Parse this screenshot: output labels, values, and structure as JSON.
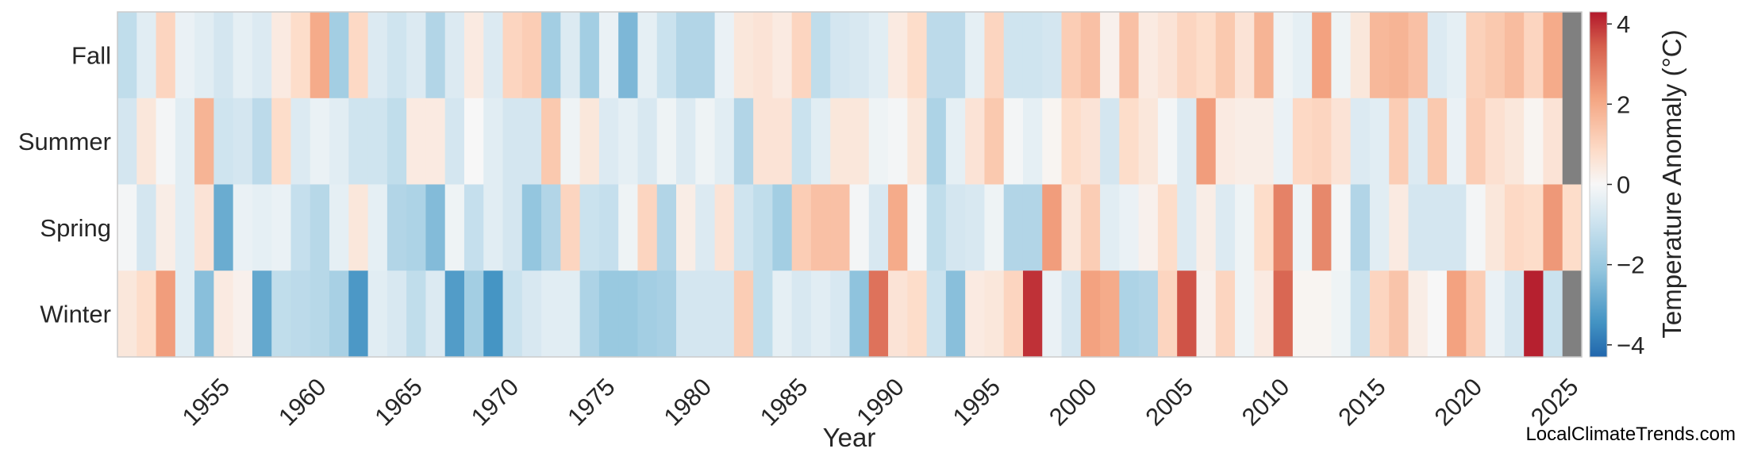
{
  "chart_data": {
    "type": "heatmap",
    "title": "",
    "xlabel": "Year",
    "ylabel": "",
    "colorbar_label": "Temperature Anomaly (°C)",
    "colormap": "RdBu_r",
    "vmin": -4.3,
    "vmax": 4.3,
    "missing_color": "#808080",
    "seasons": [
      "Fall",
      "Summer",
      "Spring",
      "Winter"
    ],
    "year_start": 1950,
    "year_end": 2025,
    "x_ticks": [
      "1955",
      "1960",
      "1965",
      "1970",
      "1975",
      "1980",
      "1985",
      "1990",
      "1995",
      "2000",
      "2005",
      "2010",
      "2015",
      "2020",
      "2025"
    ],
    "colorbar_ticks": [
      "4",
      "2",
      "0",
      "−2",
      "−4"
    ],
    "colorbar_tick_values": [
      4,
      2,
      0,
      -2,
      -4
    ],
    "values": {
      "Fall": [
        -1.2,
        -0.5,
        1.0,
        -0.3,
        -0.5,
        -0.8,
        -0.4,
        -0.6,
        0.4,
        0.8,
        2.0,
        -1.8,
        0.9,
        -0.6,
        -0.9,
        -0.6,
        -1.5,
        -0.6,
        0.4,
        -0.6,
        1.0,
        1.2,
        -1.8,
        -0.6,
        -1.8,
        -0.3,
        -2.5,
        -0.4,
        -1.0,
        -1.5,
        -1.5,
        -0.3,
        0.5,
        0.6,
        0.4,
        1.0,
        -1.2,
        -0.8,
        -0.7,
        -0.5,
        0.4,
        0.8,
        -1.3,
        -1.3,
        -0.4,
        1.0,
        -0.9,
        -0.9,
        -0.8,
        1.2,
        1.5,
        0.2,
        1.5,
        0.4,
        0.6,
        1.0,
        0.8,
        1.3,
        0.6,
        1.8,
        -0.2,
        -0.4,
        2.2,
        -0.2,
        0.5,
        1.7,
        1.8,
        1.5,
        -0.6,
        -0.4,
        1.1,
        1.3,
        1.6,
        1.0,
        2.0,
        null
      ],
      "Summer": [
        -0.8,
        0.5,
        -0.1,
        -0.5,
        1.8,
        -0.9,
        -0.8,
        -1.3,
        0.8,
        -0.6,
        -0.3,
        -0.5,
        -0.9,
        -0.9,
        -1.2,
        0.4,
        0.4,
        -0.8,
        0.0,
        -0.5,
        -0.8,
        -0.8,
        1.3,
        -0.2,
        0.5,
        -0.6,
        -0.4,
        -0.7,
        -0.2,
        -0.6,
        -0.2,
        -0.5,
        -1.5,
        0.6,
        0.6,
        -1.0,
        -0.5,
        0.5,
        0.5,
        -0.2,
        -0.1,
        0.5,
        -1.6,
        -0.4,
        0.6,
        1.3,
        -0.1,
        -0.4,
        0.1,
        0.8,
        0.6,
        -0.8,
        0.8,
        0.5,
        -0.1,
        -0.6,
        2.3,
        0.4,
        0.3,
        0.3,
        -0.3,
        0.9,
        1.0,
        0.6,
        -0.6,
        -0.5,
        1.2,
        -0.6,
        1.3,
        -0.3,
        1.2,
        0.7,
        0.5,
        0.1,
        0.6,
        null
      ],
      "Spring": [
        -0.1,
        -0.8,
        0.3,
        -0.5,
        0.6,
        -2.8,
        -0.3,
        -0.4,
        -0.3,
        -1.1,
        -1.4,
        -0.4,
        0.5,
        -0.4,
        -1.5,
        -1.6,
        -2.4,
        -0.2,
        -1.1,
        -0.5,
        -0.8,
        -2.1,
        -1.5,
        1.0,
        -1.0,
        -1.1,
        -0.2,
        1.0,
        -1.5,
        0.3,
        -0.6,
        0.6,
        -0.9,
        -1.2,
        -1.8,
        1.2,
        1.5,
        1.5,
        -0.1,
        -0.7,
        2.0,
        -0.1,
        -1.2,
        -0.8,
        -0.7,
        -0.2,
        -1.5,
        -1.5,
        2.3,
        0.5,
        1.2,
        -0.5,
        -0.3,
        0.2,
        0.8,
        -0.6,
        0.3,
        -0.6,
        -0.2,
        0.8,
        2.8,
        -0.2,
        2.7,
        -0.1,
        -1.5,
        -0.5,
        0.4,
        -0.8,
        -0.8,
        -0.8,
        -0.1,
        0.5,
        0.9,
        0.8,
        2.4,
        0.8
      ],
      "Winter": [
        0.5,
        0.8,
        2.3,
        -0.5,
        -2.3,
        0.4,
        0.2,
        -2.9,
        -1.2,
        -1.3,
        -1.4,
        -1.7,
        -3.3,
        -0.5,
        -0.7,
        -1.2,
        -0.6,
        -3.2,
        -1.8,
        -3.4,
        -1.0,
        -0.7,
        -0.5,
        -0.5,
        -1.6,
        -2.0,
        -2.0,
        -1.8,
        -1.7,
        -0.8,
        -0.8,
        -0.8,
        1.2,
        -1.2,
        -0.4,
        -0.7,
        -0.5,
        -0.7,
        -2.2,
        3.1,
        0.6,
        0.8,
        -1.0,
        -2.3,
        0.4,
        0.5,
        1.0,
        4.0,
        -0.3,
        -0.8,
        2.2,
        2.0,
        -1.6,
        -1.5,
        1.0,
        3.6,
        0.2,
        1.0,
        -0.2,
        0.4,
        3.3,
        0.1,
        0.1,
        -0.2,
        -1.0,
        1.0,
        1.4,
        0.3,
        0.0,
        2.2,
        1.2,
        -0.3,
        -0.8,
        4.2,
        -1.0
      ]
    }
  },
  "credit": "LocalClimateTrends.com"
}
